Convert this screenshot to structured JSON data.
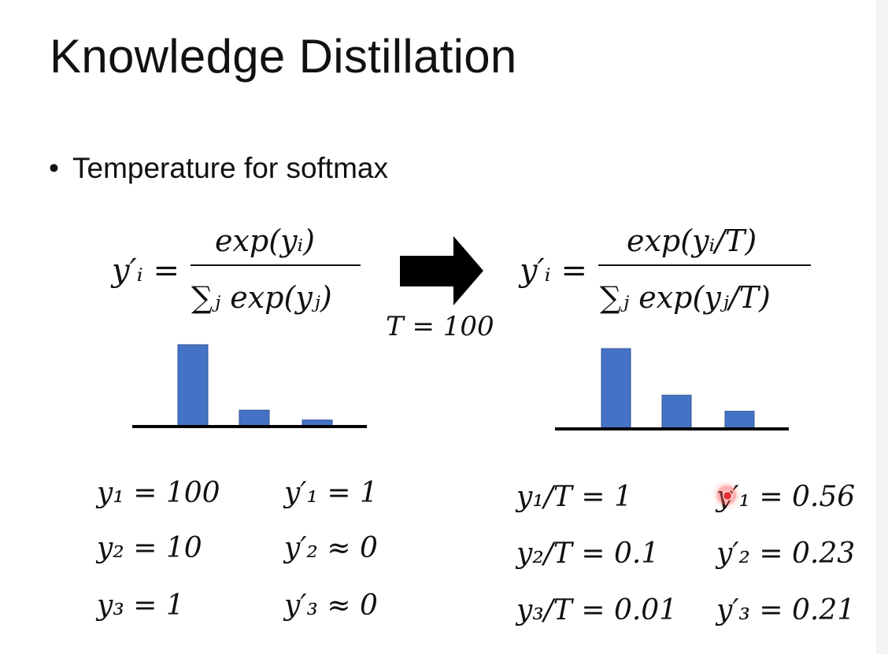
{
  "title": "Knowledge Distillation",
  "bullet": {
    "marker": "•",
    "text": "Temperature for softmax"
  },
  "temperature": {
    "label": "T = 100"
  },
  "formula_left": {
    "lhs": "y′ᵢ =",
    "numerator": "exp(yᵢ)",
    "denominator": "∑ⱼ exp(yⱼ)"
  },
  "formula_right": {
    "lhs": "y′ᵢ =",
    "numerator": "exp(yᵢ/T)",
    "denominator": "∑ⱼ exp(yⱼ/T)"
  },
  "chart_data": [
    {
      "type": "bar",
      "series": [
        {
          "values": [
            1,
            0.2,
            0.08
          ]
        }
      ],
      "ylim": [
        0,
        1
      ]
    },
    {
      "type": "bar",
      "series": [
        {
          "values": [
            1,
            0.42,
            0.22
          ]
        }
      ],
      "ylim": [
        0,
        1
      ]
    }
  ],
  "colors": {
    "bar": "#4472C4",
    "text": "#111111",
    "arrow": "#000000",
    "laser": "#e53030"
  },
  "left_values": {
    "y1": "y₁ = 100",
    "y1p": "y′₁ = 1",
    "y2": "y₂ = 10",
    "y2p": "y′₂ ≈ 0",
    "y3": "y₃ = 1",
    "y3p": "y′₃ ≈ 0"
  },
  "right_values": {
    "y1": "y₁/T = 1",
    "y1p": "y′₁ = 0.56",
    "y2": "y₂/T = 0.1",
    "y2p": "y′₂ = 0.23",
    "y3": "y₃/T = 0.01",
    "y3p": "y′₃ = 0.21"
  }
}
